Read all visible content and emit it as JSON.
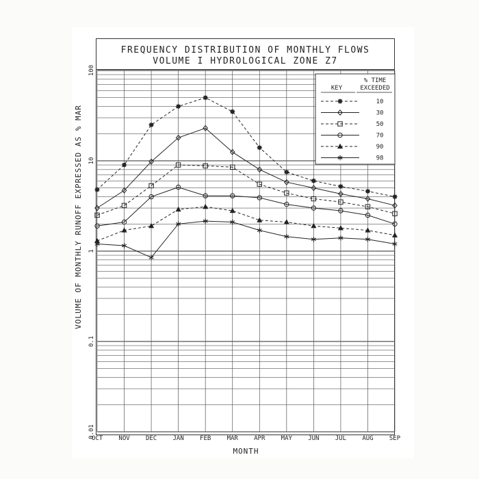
{
  "title": {
    "line1": "FREQUENCY DISTRIBUTION OF MONTHLY FLOWS",
    "line2": "VOLUME I HYDROLOGICAL ZONE Z7"
  },
  "chart_data": {
    "type": "line",
    "title": "FREQUENCY DISTRIBUTION OF MONTHLY FLOWS VOLUME I HYDROLOGICAL ZONE Z7",
    "xlabel": "MONTH",
    "ylabel": "VOLUME OF MONTHLY RUNOFF EXPRESSED AS % MAR",
    "yscale": "log",
    "ylim": [
      0.01,
      100
    ],
    "y_ticks": [
      "100",
      "10",
      "1",
      "0.1",
      "0.01"
    ],
    "grid": true,
    "legend_position": "top-right",
    "legend_key_label": "KEY",
    "legend_header": "% TIME EXCEEDED",
    "legend_header_line1": "% TIME",
    "legend_header_line2": "EXCEEDED",
    "categories": [
      "OCT",
      "NOV",
      "DEC",
      "JAN",
      "FEB",
      "MAR",
      "APR",
      "MAY",
      "JUN",
      "JUL",
      "AUG",
      "SEP"
    ],
    "series": [
      {
        "name": "10",
        "dash": "dashed",
        "marker": "star",
        "values": [
          4.8,
          9.0,
          25.0,
          40.0,
          50.0,
          35.0,
          14.0,
          7.5,
          6.0,
          5.2,
          4.6,
          4.0
        ]
      },
      {
        "name": "30",
        "dash": "solid",
        "marker": "diamond",
        "values": [
          3.0,
          4.7,
          9.8,
          18.0,
          23.0,
          12.5,
          8.0,
          5.8,
          5.0,
          4.3,
          3.8,
          3.2
        ]
      },
      {
        "name": "50",
        "dash": "dashed",
        "marker": "square",
        "values": [
          2.5,
          3.2,
          5.3,
          9.0,
          8.8,
          8.5,
          5.5,
          4.4,
          3.8,
          3.5,
          3.1,
          2.6
        ]
      },
      {
        "name": "70",
        "dash": "solid",
        "marker": "circle",
        "values": [
          1.9,
          2.1,
          4.0,
          5.1,
          4.1,
          4.1,
          3.9,
          3.3,
          3.0,
          2.8,
          2.5,
          2.0
        ]
      },
      {
        "name": "90",
        "dash": "dashed",
        "marker": "triangle",
        "values": [
          1.3,
          1.7,
          1.9,
          2.9,
          3.1,
          2.8,
          2.2,
          2.1,
          1.9,
          1.8,
          1.7,
          1.5
        ]
      },
      {
        "name": "98",
        "dash": "solid",
        "marker": "asterisk",
        "values": [
          1.2,
          1.15,
          0.85,
          2.0,
          2.15,
          2.1,
          1.7,
          1.45,
          1.35,
          1.4,
          1.35,
          1.2
        ]
      }
    ]
  }
}
